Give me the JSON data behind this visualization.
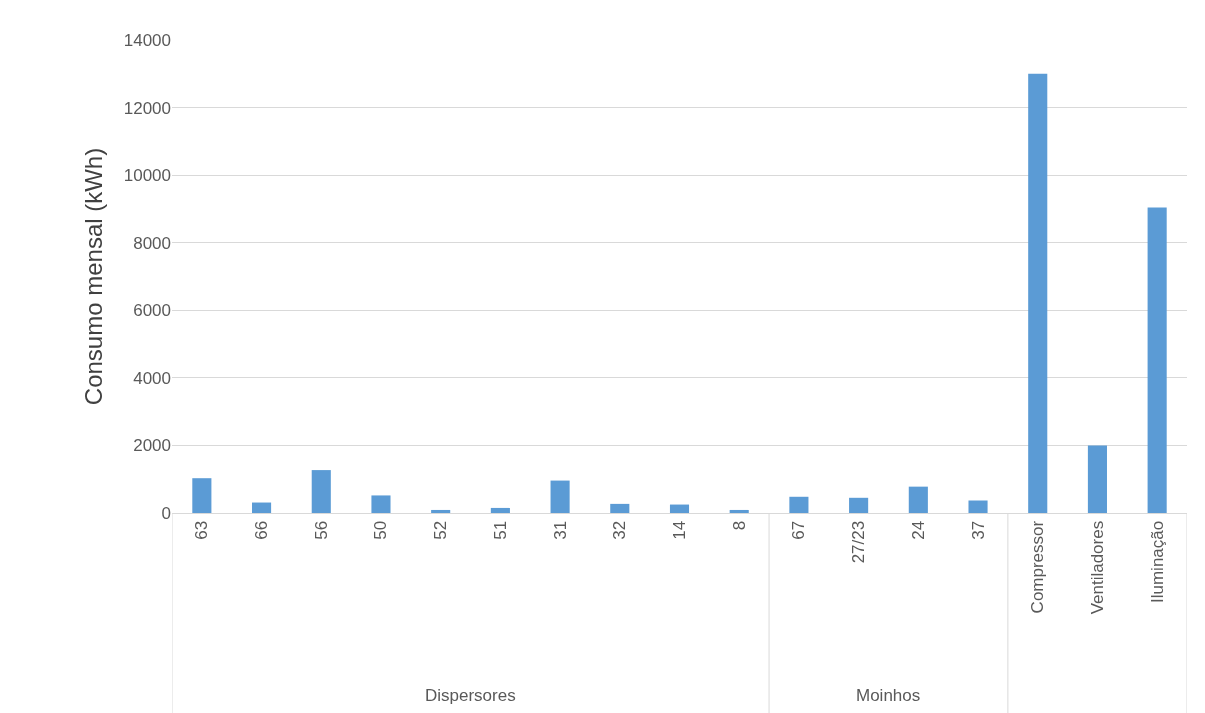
{
  "chart_data": {
    "type": "bar",
    "ylabel": "Consumo mensal (kWh)",
    "categories": [
      "63",
      "66",
      "56",
      "50",
      "52",
      "51",
      "31",
      "32",
      "14",
      "8",
      "67",
      "27/23",
      "24",
      "37",
      "Compressor",
      "Ventiladores",
      "Iluminação"
    ],
    "values": [
      1030,
      310,
      1270,
      520,
      90,
      150,
      960,
      270,
      250,
      90,
      480,
      450,
      780,
      370,
      13000,
      2000,
      9040
    ],
    "color": "#5b9bd5",
    "ylim": [
      0,
      14000
    ],
    "yticks": [
      0,
      2000,
      4000,
      6000,
      8000,
      10000,
      12000,
      14000
    ],
    "grid": "y",
    "annotations": [
      "Dispersores",
      "Moinhos"
    ]
  }
}
